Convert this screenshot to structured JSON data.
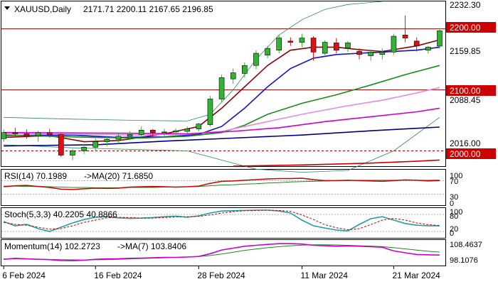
{
  "header": {
    "symbol": "XAUUSD,Daily",
    "ohlc": "2171.71 2200.11 2167.65 2196.85"
  },
  "colors": {
    "up": "#33b333",
    "down": "#dd1111",
    "sma_fast": "#8b0000",
    "sma_mid": "#1010d0",
    "sma_green": "#1a8a1a",
    "sma_pink": "#e589e5",
    "sma_magenta": "#cc00cc",
    "sma_navy": "#00007f",
    "sma_red": "#cc0000",
    "bands": "#2e8b57",
    "hline": "#8b0000",
    "rsi_line": "#cc0000",
    "rsi_ma": "#1a8a1a",
    "stoch_main": "#20a0a0",
    "stoch_signal": "#cc0000",
    "mom_line": "#cc00cc",
    "mom_ma": "#1a8a1a",
    "price_label_bg": "#cc0000"
  },
  "price_labels": {
    "p2232": "2232.30",
    "p2200": "2200.00",
    "p2159": "2159.85",
    "p2100": "2100.00",
    "p2088": "2088.45",
    "p2016": "2016.00",
    "p2000": "2000.00"
  },
  "rsi": {
    "label": "RSI(14) 70.1989",
    "ma_label": "->MA(20) 71.6850",
    "ticks": [
      "100",
      "70",
      "30",
      "0"
    ]
  },
  "stoch": {
    "label": "Stoch(5,3,3) 40.2205 40.8866",
    "ticks": [
      "100",
      "80",
      "20",
      "0"
    ]
  },
  "momentum": {
    "label": "Momentum(14) 102.2723",
    "ma_label": "->MA(7) 103.8406",
    "ticks": [
      "108.4637",
      "98.1076"
    ]
  },
  "x_labels": [
    "6 Feb 2024",
    "16 Feb 2024",
    "28 Feb 2024",
    "11 Mar 2024",
    "21 Mar 2024"
  ],
  "chart_data": {
    "type": "candlestick",
    "symbol": "XAUUSD",
    "timeframe": "Daily",
    "ylim": [
      1975,
      2245
    ],
    "x_index_range": [
      -0.2,
      38.5
    ],
    "candles": [
      {
        "o": 2020,
        "h": 2035,
        "l": 2015,
        "c": 2030
      },
      {
        "o": 2030,
        "h": 2038,
        "l": 2024,
        "c": 2028
      },
      {
        "o": 2028,
        "h": 2035,
        "l": 2020,
        "c": 2025
      },
      {
        "o": 2025,
        "h": 2033,
        "l": 2015,
        "c": 2030
      },
      {
        "o": 2030,
        "h": 2036,
        "l": 2022,
        "c": 2027
      },
      {
        "o": 2027,
        "h": 2030,
        "l": 1990,
        "c": 1993
      },
      {
        "o": 1993,
        "h": 2003,
        "l": 1985,
        "c": 2000
      },
      {
        "o": 2000,
        "h": 2010,
        "l": 1995,
        "c": 2006
      },
      {
        "o": 2006,
        "h": 2020,
        "l": 2000,
        "c": 2015
      },
      {
        "o": 2015,
        "h": 2025,
        "l": 2008,
        "c": 2019
      },
      {
        "o": 2019,
        "h": 2028,
        "l": 2012,
        "c": 2024
      },
      {
        "o": 2024,
        "h": 2032,
        "l": 2018,
        "c": 2027
      },
      {
        "o": 2027,
        "h": 2040,
        "l": 2022,
        "c": 2034
      },
      {
        "o": 2034,
        "h": 2036,
        "l": 2022,
        "c": 2030
      },
      {
        "o": 2030,
        "h": 2036,
        "l": 2022,
        "c": 2031
      },
      {
        "o": 2031,
        "h": 2037,
        "l": 2024,
        "c": 2033
      },
      {
        "o": 2032,
        "h": 2040,
        "l": 2028,
        "c": 2036
      },
      {
        "o": 2036,
        "h": 2046,
        "l": 2032,
        "c": 2044
      },
      {
        "o": 2043,
        "h": 2090,
        "l": 2040,
        "c": 2085
      },
      {
        "o": 2085,
        "h": 2125,
        "l": 2080,
        "c": 2120
      },
      {
        "o": 2118,
        "h": 2135,
        "l": 2110,
        "c": 2128
      },
      {
        "o": 2127,
        "h": 2145,
        "l": 2120,
        "c": 2140
      },
      {
        "o": 2140,
        "h": 2165,
        "l": 2134,
        "c": 2160
      },
      {
        "o": 2157,
        "h": 2172,
        "l": 2152,
        "c": 2168
      },
      {
        "o": 2165,
        "h": 2190,
        "l": 2160,
        "c": 2185
      },
      {
        "o": 2180,
        "h": 2186,
        "l": 2172,
        "c": 2178
      },
      {
        "o": 2178,
        "h": 2192,
        "l": 2170,
        "c": 2185
      },
      {
        "o": 2185,
        "h": 2188,
        "l": 2148,
        "c": 2162
      },
      {
        "o": 2160,
        "h": 2181,
        "l": 2157,
        "c": 2178
      },
      {
        "o": 2177,
        "h": 2185,
        "l": 2160,
        "c": 2165
      },
      {
        "o": 2169,
        "h": 2180,
        "l": 2162,
        "c": 2177
      },
      {
        "o": 2163,
        "h": 2168,
        "l": 2150,
        "c": 2158
      },
      {
        "o": 2156,
        "h": 2166,
        "l": 2148,
        "c": 2162
      },
      {
        "o": 2158,
        "h": 2168,
        "l": 2150,
        "c": 2162
      },
      {
        "o": 2162,
        "h": 2192,
        "l": 2158,
        "c": 2188
      },
      {
        "o": 2190,
        "h": 2222,
        "l": 2178,
        "c": 2185
      },
      {
        "o": 2180,
        "h": 2186,
        "l": 2163,
        "c": 2172
      },
      {
        "o": 2165,
        "h": 2172,
        "l": 2160,
        "c": 2170
      },
      {
        "o": 2171.71,
        "h": 2200.11,
        "l": 2167.65,
        "c": 2196.85
      }
    ],
    "horizontal_lines": [
      2200,
      2100,
      2000
    ],
    "moving_averages": [
      {
        "color": "#8b0000",
        "points": [
          [
            0,
            2022
          ],
          [
            4,
            2025
          ],
          [
            7,
            2015
          ],
          [
            10,
            2017
          ],
          [
            14,
            2028
          ],
          [
            17,
            2040
          ],
          [
            19,
            2070
          ],
          [
            21,
            2105
          ],
          [
            23,
            2140
          ],
          [
            25,
            2165
          ],
          [
            27,
            2170
          ],
          [
            29,
            2170
          ],
          [
            31,
            2166
          ],
          [
            33,
            2163
          ],
          [
            36,
            2172
          ],
          [
            38,
            2182
          ]
        ]
      },
      {
        "color": "#1010d0",
        "points": [
          [
            0,
            2025
          ],
          [
            6,
            2026
          ],
          [
            10,
            2022
          ],
          [
            14,
            2023
          ],
          [
            17,
            2027
          ],
          [
            19,
            2040
          ],
          [
            21,
            2070
          ],
          [
            23,
            2105
          ],
          [
            25,
            2135
          ],
          [
            27,
            2152
          ],
          [
            29,
            2158
          ],
          [
            31,
            2160
          ],
          [
            33,
            2162
          ],
          [
            36,
            2165
          ],
          [
            38,
            2170
          ]
        ]
      },
      {
        "color": "#1a8a1a",
        "points": [
          [
            0,
            2026
          ],
          [
            8,
            2022
          ],
          [
            12,
            2021
          ],
          [
            16,
            2024
          ],
          [
            19,
            2030
          ],
          [
            21,
            2042
          ],
          [
            23,
            2060
          ],
          [
            26,
            2078
          ],
          [
            29,
            2092
          ],
          [
            32,
            2108
          ],
          [
            35,
            2125
          ],
          [
            38,
            2140
          ]
        ]
      },
      {
        "color": "#e589e5",
        "points": [
          [
            0,
            2028
          ],
          [
            8,
            2027
          ],
          [
            12,
            2026
          ],
          [
            16,
            2028
          ],
          [
            19,
            2032
          ],
          [
            22,
            2044
          ],
          [
            26,
            2060
          ],
          [
            30,
            2074
          ],
          [
            33,
            2083
          ],
          [
            36,
            2095
          ],
          [
            38,
            2104
          ]
        ]
      },
      {
        "color": "#cc00cc",
        "points": [
          [
            0,
            2030
          ],
          [
            10,
            2029
          ],
          [
            16,
            2028
          ],
          [
            20,
            2032
          ],
          [
            24,
            2038
          ],
          [
            28,
            2048
          ],
          [
            32,
            2056
          ],
          [
            36,
            2064
          ],
          [
            38,
            2070
          ]
        ]
      },
      {
        "color": "#00007f",
        "points": [
          [
            0,
            2008
          ],
          [
            8,
            2010
          ],
          [
            14,
            2016
          ],
          [
            20,
            2021
          ],
          [
            26,
            2026
          ],
          [
            32,
            2033
          ],
          [
            36,
            2037
          ],
          [
            38,
            2039
          ]
        ]
      },
      {
        "color": "#cc0000",
        "points": [
          [
            20,
            1975
          ],
          [
            26,
            1977
          ],
          [
            32,
            1980
          ],
          [
            36,
            1983
          ],
          [
            38,
            1985
          ]
        ]
      }
    ],
    "bands": [
      {
        "points": [
          [
            0,
            2055
          ],
          [
            6,
            2052
          ],
          [
            12,
            2050
          ],
          [
            16,
            2049
          ],
          [
            18,
            2060
          ],
          [
            20,
            2100
          ],
          [
            22,
            2150
          ],
          [
            24,
            2190
          ],
          [
            26,
            2215
          ],
          [
            28,
            2232
          ],
          [
            30,
            2240
          ],
          [
            33,
            2245
          ]
        ]
      },
      {
        "points": [
          [
            0,
            2010
          ],
          [
            6,
            2005
          ],
          [
            12,
            2002
          ],
          [
            16,
            2000
          ],
          [
            18,
            1990
          ],
          [
            20,
            1980
          ],
          [
            22,
            1970
          ],
          [
            26,
            1965
          ],
          [
            30,
            1968
          ],
          [
            34,
            2000
          ],
          [
            38,
            2055
          ]
        ]
      }
    ],
    "rsi": {
      "ylim": [
        0,
        100
      ],
      "levels": [
        70,
        30
      ],
      "value": [
        52,
        55,
        56,
        53,
        50,
        45,
        44,
        46,
        48,
        47,
        48,
        51,
        52,
        53,
        52,
        51,
        52,
        54,
        62,
        68,
        69,
        71,
        73,
        75,
        76,
        76,
        77,
        73,
        70,
        70,
        71,
        70,
        69,
        68,
        70,
        72,
        71,
        69,
        70.1989
      ],
      "ma": [
        54,
        54,
        53,
        53,
        52,
        51,
        50,
        50,
        49,
        49,
        49,
        50,
        50,
        50,
        51,
        51,
        52,
        53,
        55,
        57,
        58,
        60,
        61,
        63,
        64,
        66,
        67,
        68,
        69,
        70,
        70,
        71,
        71,
        71,
        71,
        71,
        71,
        71,
        71.685
      ]
    },
    "stochastic": {
      "ylim": [
        0,
        100
      ],
      "levels": [
        80,
        20
      ],
      "main": [
        55,
        40,
        45,
        30,
        20,
        35,
        50,
        62,
        70,
        72,
        68,
        66,
        67,
        69,
        72,
        74,
        70,
        75,
        85,
        92,
        93,
        94,
        95,
        95,
        92,
        85,
        60,
        40,
        32,
        25,
        22,
        45,
        65,
        72,
        60,
        48,
        42,
        40,
        40.2205
      ],
      "signal": [
        52,
        45,
        42,
        35,
        28,
        30,
        40,
        52,
        60,
        68,
        70,
        69,
        67,
        67,
        69,
        71,
        72,
        73,
        78,
        85,
        90,
        93,
        94,
        95,
        94,
        91,
        78,
        62,
        44,
        33,
        26,
        30,
        44,
        60,
        66,
        60,
        50,
        44,
        40.8866
      ]
    },
    "momentum": {
      "ylim": [
        97,
        110
      ],
      "value": [
        100,
        100.5,
        100.2,
        100,
        99.8,
        99.3,
        99.2,
        99.5,
        100,
        100.2,
        100.3,
        100.5,
        100.6,
        100.8,
        101,
        101,
        101.2,
        101.5,
        103,
        105,
        106,
        107,
        107.5,
        108,
        108.4,
        108.4,
        108.2,
        107.5,
        107.3,
        107,
        107.2,
        107,
        106.8,
        106.5,
        104.5,
        103.5,
        102.6,
        102.4,
        102.2723
      ],
      "ma": [
        100.2,
        100.2,
        100.1,
        100,
        99.9,
        99.8,
        99.7,
        99.6,
        99.7,
        99.8,
        100,
        100.2,
        100.4,
        100.6,
        100.8,
        101,
        101.2,
        101.5,
        102,
        102.8,
        103.8,
        104.8,
        105.5,
        106.2,
        106.8,
        107.3,
        107.6,
        107.8,
        107.8,
        107.7,
        107.5,
        107.3,
        107.1,
        106.8,
        106.2,
        105.6,
        104.9,
        104.3,
        103.8406
      ]
    },
    "x_tick_indices": [
      0,
      8,
      17,
      26,
      34
    ]
  }
}
